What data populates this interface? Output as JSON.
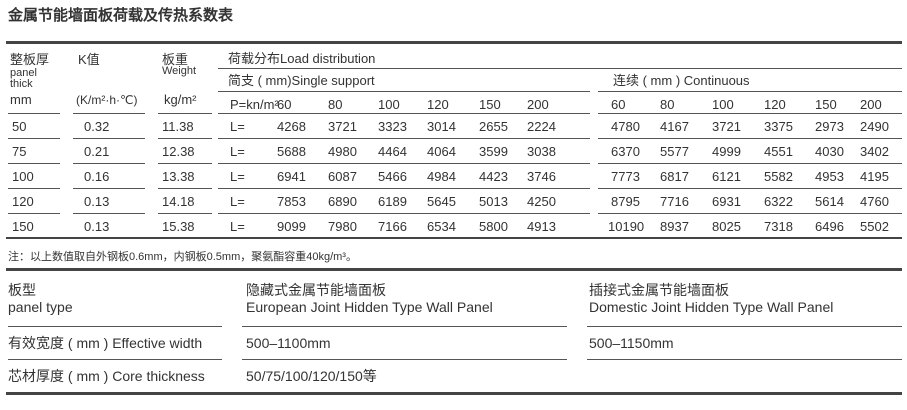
{
  "title": "金属节能墙面板荷载及传热系数表",
  "table1": {
    "headers": {
      "thick_cn": "整板厚",
      "thick_en1": "panel",
      "thick_en2": "thick",
      "thick_unit": "mm",
      "k": "K值",
      "k_unit": "(K/m²·h·℃)",
      "weight_cn": "板重",
      "weight_en": "Weight",
      "weight_unit": "kg/m²",
      "load": "荷载分布Load distribution",
      "single": "简支 ( mm)Single support",
      "continuous": "连续 ( mm ) Continuous",
      "p": "P=kn/m²",
      "spans": [
        "60",
        "80",
        "100",
        "120",
        "150",
        "200"
      ]
    },
    "rows": [
      {
        "thick": "50",
        "k": "0.32",
        "weight": "11.38",
        "l": "L=",
        "single": [
          "4268",
          "3721",
          "3323",
          "3014",
          "2655",
          "2224"
        ],
        "continuous": [
          "4780",
          "4167",
          "3721",
          "3375",
          "2973",
          "2490"
        ]
      },
      {
        "thick": "75",
        "k": "0.21",
        "weight": "12.38",
        "l": "L=",
        "single": [
          "5688",
          "4980",
          "4464",
          "4064",
          "3599",
          "3038"
        ],
        "continuous": [
          "6370",
          "5577",
          "4999",
          "4551",
          "4030",
          "3402"
        ]
      },
      {
        "thick": "100",
        "k": "0.16",
        "weight": "13.38",
        "l": "L=",
        "single": [
          "6941",
          "6087",
          "5466",
          "4984",
          "4423",
          "3746"
        ],
        "continuous": [
          "7773",
          "6817",
          "6121",
          "5582",
          "4953",
          "4195"
        ]
      },
      {
        "thick": "120",
        "k": "0.13",
        "weight": "14.18",
        "l": "L=",
        "single": [
          "7853",
          "6890",
          "6189",
          "5645",
          "5013",
          "4250"
        ],
        "continuous": [
          "8795",
          "7716",
          "6931",
          "6322",
          "5614",
          "4760"
        ]
      },
      {
        "thick": "150",
        "k": "0.13",
        "weight": "15.38",
        "l": "L=",
        "single": [
          "9099",
          "7980",
          "7166",
          "6534",
          "5800",
          "4913"
        ],
        "continuous": [
          "10190",
          "8937",
          "8025",
          "7318",
          "6496",
          "5502"
        ]
      }
    ]
  },
  "note": "注：以上数值取自外钢板0.6mm，内钢板0.5mm，聚氨酯容重40kg/m³。",
  "table2": {
    "type_cn": "板型",
    "type_en": "panel type",
    "eu_cn": "隐藏式金属节能墙面板",
    "eu_en": "European Joint Hidden Type Wall Panel",
    "dom_cn": "插接式金属节能墙面板",
    "dom_en": "Domestic Joint Hidden Type Wall Panel",
    "width_label": "有效宽度 ( mm ) Effective width",
    "width_eu": "500–1100mm",
    "width_dom": "500–1150mm",
    "core_label": "芯材厚度 ( mm ) Core thickness",
    "core_eu": "50/75/100/120/150等"
  }
}
